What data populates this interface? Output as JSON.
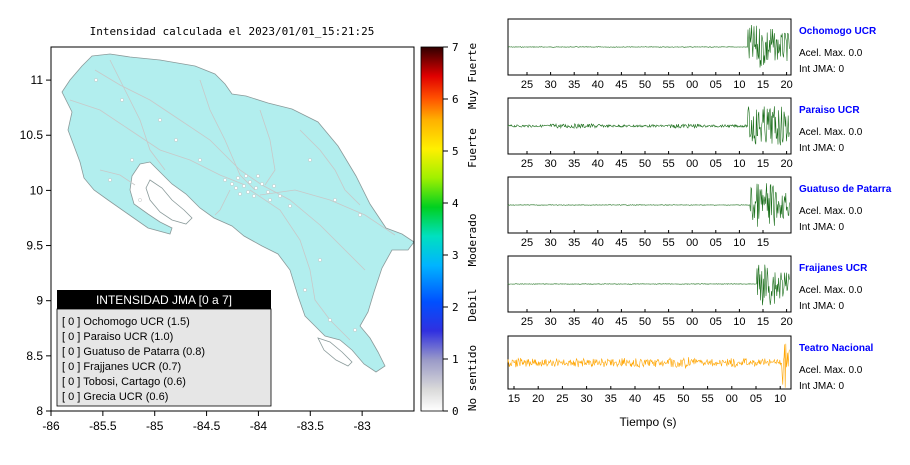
{
  "map": {
    "title": "Intensidad calculada el 2023/01/01_15:21:25",
    "x_ticks": [
      "-86",
      "-85.5",
      "-85",
      "-84.5",
      "-84",
      "-83.5",
      "-83"
    ],
    "y_ticks": [
      "11",
      "10.5",
      "10",
      "9.5",
      "9",
      "8.5",
      "8"
    ],
    "legend_title": "INTENSIDAD JMA [0 a 7]",
    "legend_items": [
      "[ 0 ]  Ochomogo UCR (1.5)",
      "[ 0 ]  Paraiso UCR (1.0)",
      "[ 0 ]  Guatuso de Patarra (0.8)",
      "[ 0 ]  Frajjanes UCR (0.7)",
      "[ 0 ]  Tobosi, Cartago (0.6)",
      "[ 0 ]  Grecia UCR (0.6)"
    ],
    "colors": {
      "land": "#b2eeee",
      "border": "#9aa6a6"
    }
  },
  "colorbar": {
    "ticks": [
      "7",
      "6",
      "5",
      "4",
      "3",
      "2",
      "1",
      "0"
    ],
    "labels": [
      "Muy Fuerte",
      "Fuerte",
      "Moderado",
      "Debil",
      "No sentido"
    ]
  },
  "chart_data": [
    {
      "type": "line",
      "station": "Ochomogo UCR",
      "x_ticks": [
        "25",
        "30",
        "35",
        "40",
        "45",
        "50",
        "55",
        "00",
        "05",
        "10",
        "15",
        "20"
      ],
      "acel_label": "Acel. Max. 0.0",
      "int_label": "Int JMA: 0",
      "color": "#1a6e1a"
    },
    {
      "type": "line",
      "station": "Paraiso UCR",
      "x_ticks": [
        "25",
        "30",
        "35",
        "40",
        "45",
        "50",
        "55",
        "00",
        "05",
        "10",
        "15",
        "20"
      ],
      "acel_label": "Acel. Max. 0.0",
      "int_label": "Int JMA: 0",
      "color": "#1a6e1a"
    },
    {
      "type": "line",
      "station": "Guatuso de Patarra",
      "x_ticks": [
        "25",
        "30",
        "35",
        "40",
        "45",
        "50",
        "55",
        "00",
        "05",
        "10",
        "15"
      ],
      "acel_label": "Acel. Max. 0.0",
      "int_label": "Int JMA: 0",
      "color": "#1a6e1a"
    },
    {
      "type": "line",
      "station": "Fraijanes UCR",
      "x_ticks": [
        "25",
        "30",
        "35",
        "40",
        "45",
        "50",
        "55",
        "00",
        "05",
        "10",
        "15",
        "20"
      ],
      "acel_label": "Acel. Max. 0.0",
      "int_label": "Int JMA: 0",
      "color": "#1a6e1a"
    },
    {
      "type": "line",
      "station": "Teatro Nacional",
      "x_ticks": [
        "15",
        "20",
        "25",
        "30",
        "35",
        "40",
        "45",
        "50",
        "55",
        "00",
        "05",
        "10"
      ],
      "acel_label": "Acel. Max. 0.0",
      "int_label": "Int JMA: 0",
      "xlabel": "Tiempo (s)",
      "color": "#ffa500"
    }
  ]
}
